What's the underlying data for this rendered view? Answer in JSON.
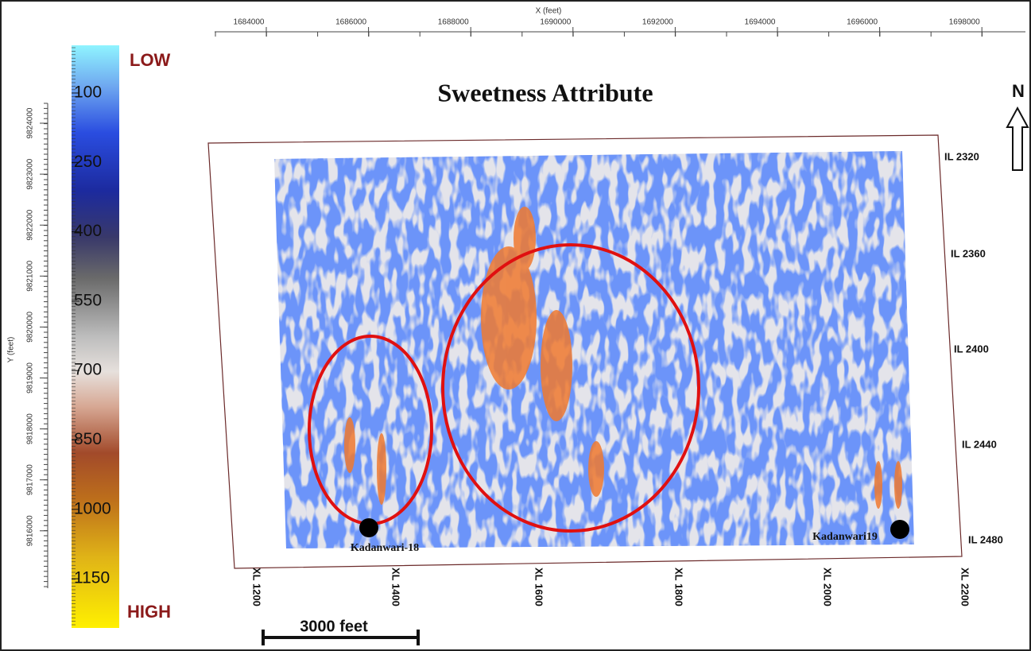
{
  "axes": {
    "x_label": "X (feet)",
    "x_ticks": [
      1684000,
      1686000,
      1688000,
      1690000,
      1692000,
      1694000,
      1696000,
      1698000
    ],
    "y_label": "Y (feet)",
    "y_ticks": [
      9824000,
      9823000,
      9822000,
      9821000,
      9820000,
      9819000,
      9818000,
      9817000,
      9816000
    ]
  },
  "colorbar": {
    "low": "LOW",
    "high": "HIGH",
    "labels": [
      100,
      250,
      400,
      550,
      700,
      850,
      1000,
      1150
    ]
  },
  "title": "Sweetness Attribute",
  "north": "N",
  "inlines": [
    "IL 2320",
    "IL 2360",
    "IL 2400",
    "IL 2440",
    "IL 2480"
  ],
  "crosslines": [
    "XL 1200",
    "XL 1400",
    "XL 1600",
    "XL 1800",
    "XL 2000",
    "XL 2200"
  ],
  "wells": [
    "Kadanwari-18",
    "Kadanwari19"
  ],
  "scale_bar": "3000 feet"
}
